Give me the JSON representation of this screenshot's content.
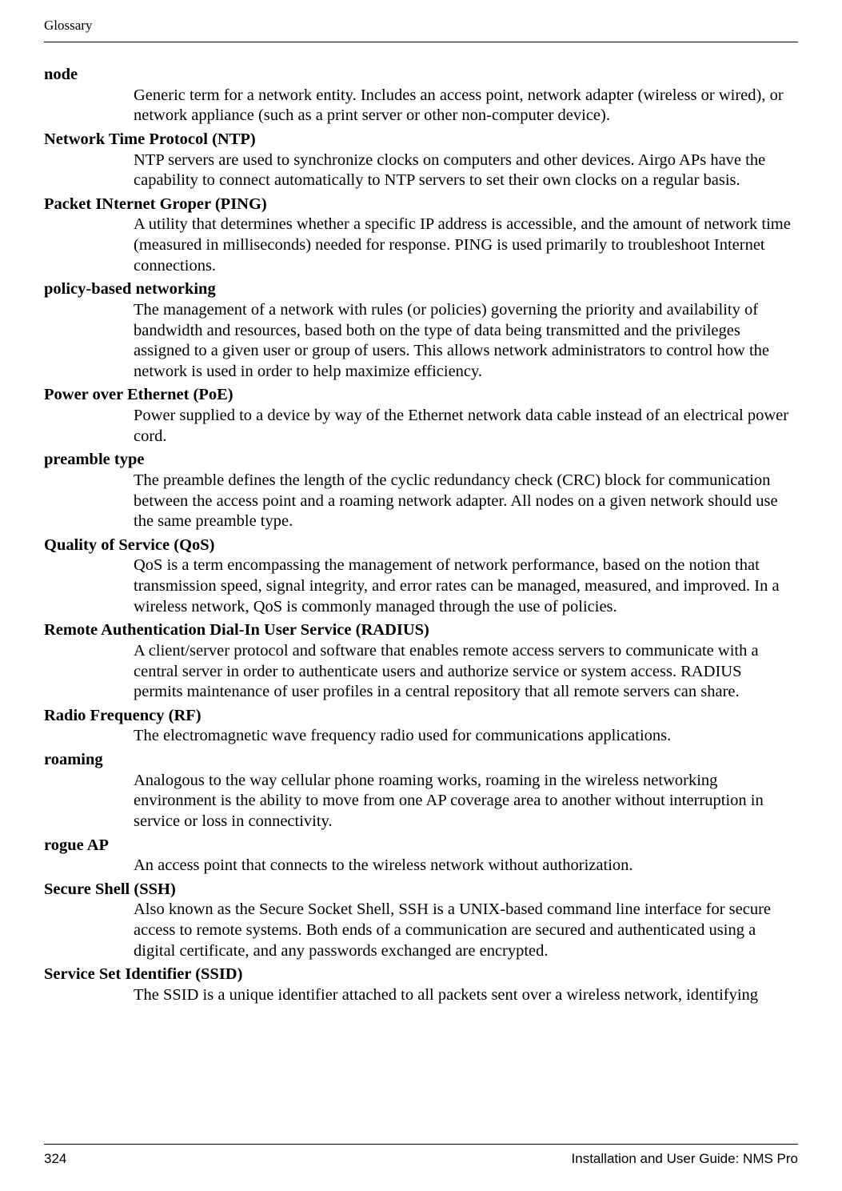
{
  "header": {
    "title": "Glossary"
  },
  "entries": [
    {
      "term": "node",
      "definition": "Generic term for a network entity. Includes an access point, network adapter (wireless or wired), or network appliance (such as a print server or other non-computer device)."
    },
    {
      "term": "Network Time Protocol (NTP)",
      "definition": "NTP servers are used to synchronize clocks on computers and other devices. Airgo APs have the capability to connect automatically to NTP servers to set their own clocks on a regular basis."
    },
    {
      "term": "Packet INternet Groper (PING)",
      "definition": "A utility that determines whether a specific IP address is accessible, and the amount of network time (measured in milliseconds) needed for response. PING is used primarily to troubleshoot Internet connections."
    },
    {
      "term": "policy-based networking",
      "definition": "The management of a network with rules (or policies) governing the priority and availability of bandwidth and resources, based both on the type of data being transmitted and the privileges assigned to a given user or group of users. This allows network administrators to control how the network is used in order to help maximize efficiency."
    },
    {
      "term": "Power over Ethernet (PoE)",
      "definition": "Power supplied to a device by way of the Ethernet network data cable instead of an electrical power cord."
    },
    {
      "term": "preamble type",
      "definition": "The preamble defines the length of the cyclic redundancy check (CRC) block for communication between the access point and a roaming network adapter. All nodes on a given network should use the same preamble type."
    },
    {
      "term": "Quality of Service (QoS)",
      "definition": "QoS is a term encompassing the management of network performance, based on the notion that transmission speed, signal integrity, and error rates can be managed, measured, and improved. In a wireless network, QoS is commonly managed through the use of policies."
    },
    {
      "term": "Remote Authentication Dial-In User Service (RADIUS)",
      "definition": "A client/server protocol and software that enables remote access servers to communicate with a central server in order to authenticate users and authorize service or system access. RADIUS permits maintenance of user profiles in a central repository that all remote servers can share."
    },
    {
      "term": "Radio Frequency (RF)",
      "definition": "The electromagnetic wave frequency radio used for communications applications."
    },
    {
      "term": "roaming",
      "definition": "Analogous to the way cellular phone roaming works, roaming in the wireless networking environment is the ability to move from one AP coverage area to another without interruption in service or loss in connectivity."
    },
    {
      "term": "rogue AP",
      "definition": "An access point that connects to the wireless network without authorization."
    },
    {
      "term": "Secure Shell (SSH)",
      "definition": "Also known as the Secure Socket Shell, SSH is a UNIX-based command line interface for secure access to remote systems. Both ends of a communication are secured and authenticated using a digital certificate, and any passwords exchanged are encrypted."
    },
    {
      "term": "Service Set Identifier (SSID)",
      "definition": "The SSID is a unique identifier attached to all packets sent over a wireless network, identifying"
    }
  ],
  "footer": {
    "page_number": "324",
    "doc_title": "Installation and User Guide: NMS Pro"
  }
}
